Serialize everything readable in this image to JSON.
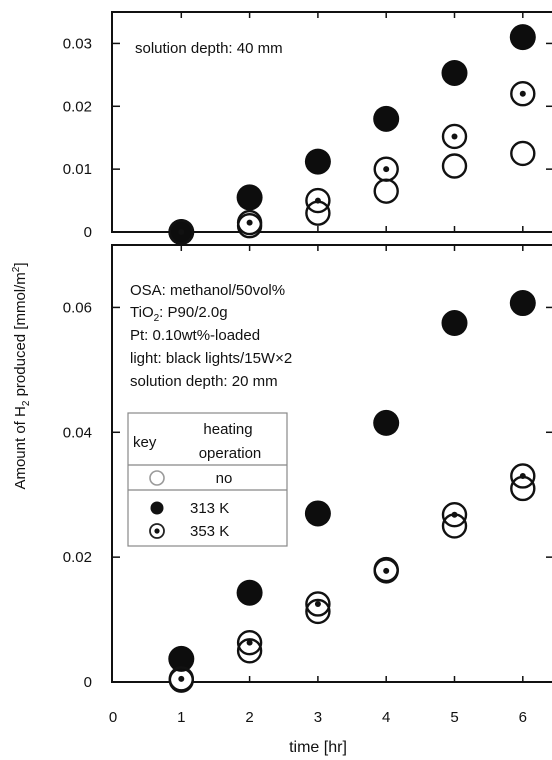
{
  "figure": {
    "ylabel_pre": "Amount of H",
    "ylabel_sub": "2",
    "ylabel_post": " produced [mmol/m",
    "ylabel_sup": "2",
    "ylabel_end": "]",
    "xlabel": "time [hr]"
  },
  "top_panel": {
    "annotation": "solution depth: 40 mm"
  },
  "bottom_panel": {
    "annotation_lines": [
      {
        "pre": "OSA: methanol/50vol%",
        "sub": "",
        "post": ""
      },
      {
        "pre": "TiO",
        "sub": "2",
        "post": ": P90/2.0g"
      },
      {
        "pre": "Pt: 0.10wt%-loaded",
        "sub": "",
        "post": ""
      },
      {
        "pre": "light: black lights/15W×2",
        "sub": "",
        "post": ""
      },
      {
        "pre": "solution depth: 20 mm",
        "sub": "",
        "post": ""
      }
    ]
  },
  "legend": {
    "key_label": "key",
    "heading_line1": "heating",
    "heading_line2": "operation",
    "entries": [
      {
        "label": "no",
        "marker": "open-circle-gray"
      },
      {
        "label": "313 K",
        "marker": "filled-circle"
      },
      {
        "label": "353 K",
        "marker": "dotted-circle"
      }
    ]
  },
  "chart_data": [
    {
      "type": "scatter",
      "panel": "top",
      "x": [
        1,
        2,
        3,
        4,
        5,
        6
      ],
      "xlim": [
        0,
        6.25
      ],
      "xticks": [
        "0",
        "1",
        "2",
        "3",
        "4",
        "5",
        "6"
      ],
      "ylim": [
        0,
        0.035
      ],
      "yticks": [
        0,
        0.01,
        0.02,
        0.03
      ],
      "ytick_labels": [
        "0",
        "0.01",
        "0.02",
        "0.03"
      ],
      "series": [
        {
          "marker": "open-circle",
          "values": [
            0,
            0.001,
            0.003,
            0.0065,
            0.0105,
            0.0125
          ]
        },
        {
          "marker": "filled-circle",
          "values": [
            0,
            0.0055,
            0.0112,
            0.018,
            0.0253,
            0.031
          ]
        },
        {
          "marker": "dotted-circle",
          "values": [
            0,
            0.0015,
            0.005,
            0.01,
            0.0152,
            0.022
          ]
        }
      ]
    },
    {
      "type": "scatter",
      "panel": "bottom",
      "x": [
        1,
        2,
        3,
        4,
        5,
        6
      ],
      "xlim": [
        0,
        6.25
      ],
      "xticks": [
        "0",
        "1",
        "2",
        "3",
        "4",
        "5",
        "6"
      ],
      "ylim": [
        0,
        0.07
      ],
      "yticks": [
        0,
        0.02,
        0.04,
        0.06
      ],
      "ytick_labels": [
        "0",
        "0.02",
        "0.04",
        "0.06"
      ],
      "series": [
        {
          "marker": "open-circle",
          "values": [
            0.0003,
            0.005,
            0.0113,
            0.018,
            0.025,
            0.031
          ]
        },
        {
          "marker": "filled-circle",
          "values": [
            0.0037,
            0.0143,
            0.027,
            0.0415,
            0.0575,
            0.0607
          ]
        },
        {
          "marker": "dotted-circle",
          "values": [
            0.0005,
            0.0063,
            0.0125,
            0.0178,
            0.0268,
            0.033
          ]
        }
      ]
    }
  ]
}
